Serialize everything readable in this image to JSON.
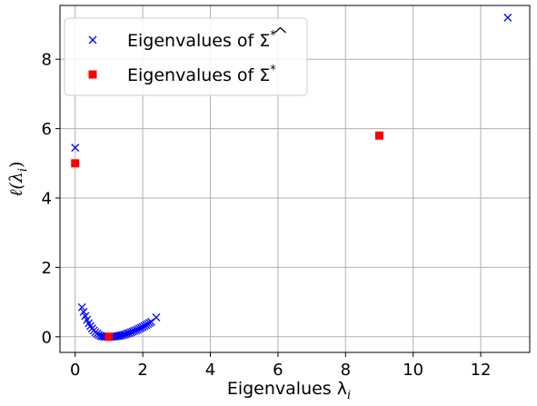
{
  "chart_data": {
    "type": "scatter",
    "xlabel": "Eigenvalues λ",
    "xlabel_sub": "i",
    "ylabel": "ℓ(λ",
    "ylabel_sub": "i",
    "ylabel_close": ")",
    "xlim": [
      -0.45,
      13.45
    ],
    "ylim": [
      -0.45,
      9.55
    ],
    "xticks": [
      0,
      2,
      4,
      6,
      8,
      10,
      12
    ],
    "yticks": [
      0,
      2,
      4,
      6,
      8
    ],
    "grid": true,
    "legend_position": "top-left",
    "series": [
      {
        "name": "Eigenvalues of Σ̂*",
        "legend_prefix": "Eigenvalues of ",
        "legend_symbol": "Σ",
        "legend_hat": true,
        "legend_sup": "*",
        "marker": "x",
        "color": "#0000ff",
        "x": [
          0.0,
          0.2,
          0.25,
          0.3,
          0.35,
          0.4,
          0.45,
          0.5,
          0.55,
          0.6,
          0.65,
          0.7,
          0.75,
          0.8,
          0.85,
          0.9,
          0.95,
          1.0,
          1.05,
          1.1,
          1.15,
          1.2,
          1.25,
          1.3,
          1.35,
          1.4,
          1.45,
          1.5,
          1.55,
          1.6,
          1.65,
          1.7,
          1.75,
          1.8,
          1.85,
          1.9,
          1.95,
          2.0,
          2.05,
          2.1,
          2.15,
          2.2,
          2.25,
          2.4,
          12.8
        ],
        "y": [
          5.45,
          0.85,
          0.72,
          0.6,
          0.49,
          0.39,
          0.31,
          0.24,
          0.18,
          0.13,
          0.09,
          0.055,
          0.03,
          0.015,
          0.005,
          0.001,
          0.0,
          0.001,
          0.002,
          0.004,
          0.008,
          0.013,
          0.02,
          0.028,
          0.038,
          0.05,
          0.063,
          0.078,
          0.094,
          0.11,
          0.13,
          0.15,
          0.17,
          0.19,
          0.21,
          0.235,
          0.26,
          0.285,
          0.31,
          0.34,
          0.37,
          0.4,
          0.43,
          0.56,
          9.2
        ]
      },
      {
        "name": "Eigenvalues of Σ*",
        "legend_prefix": "Eigenvalues of ",
        "legend_symbol": "Σ",
        "legend_hat": false,
        "legend_sup": "*",
        "marker": "square",
        "color": "#ff0000",
        "x": [
          0.0,
          1.0,
          9.0
        ],
        "y": [
          5.0,
          0.0,
          5.8
        ]
      }
    ]
  }
}
